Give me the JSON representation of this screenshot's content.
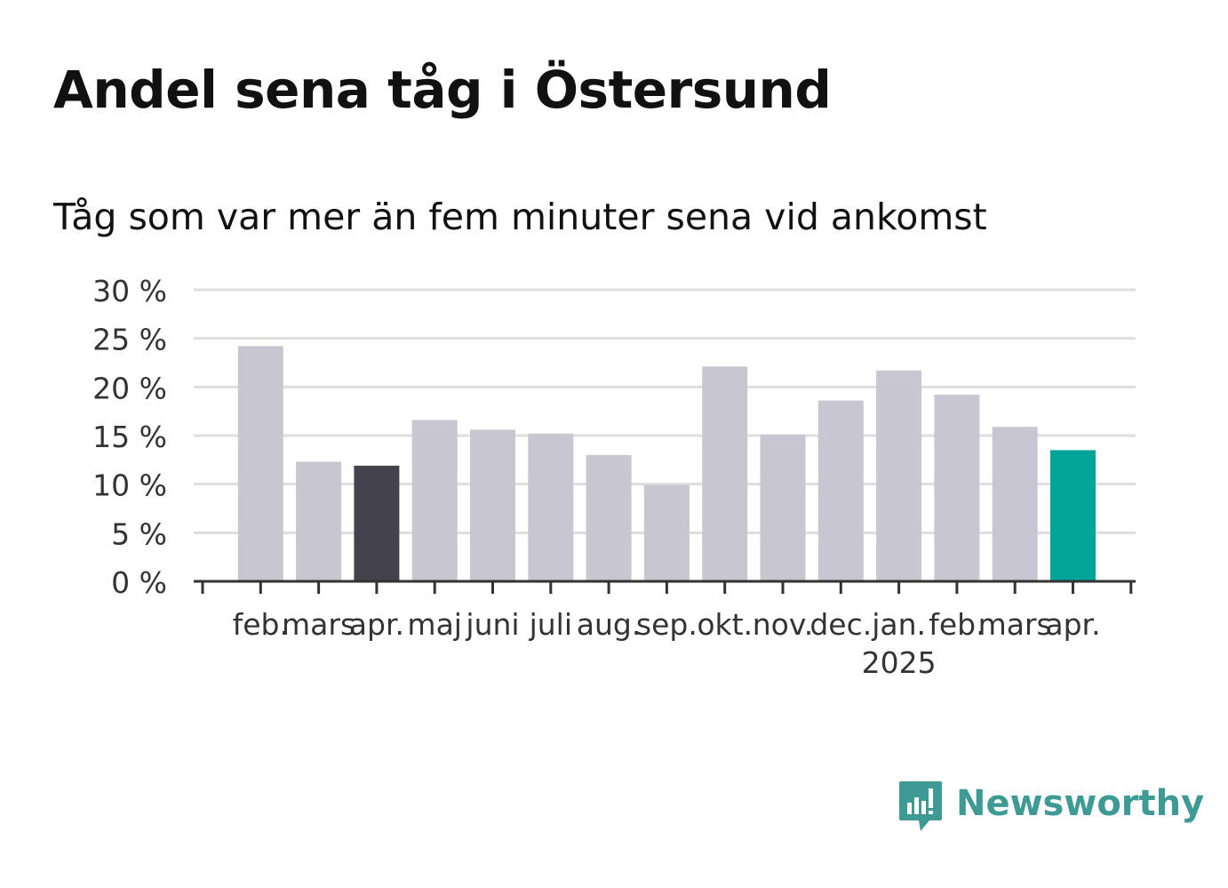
{
  "title": "Andel sena tåg i Östersund",
  "subtitle": "Tåg som var mer än fem minuter sena vid ankomst",
  "brand": {
    "name": "Newsworthy",
    "icon": "newsworthy-logo-icon",
    "color": "#3d9a95"
  },
  "chart_data": {
    "type": "bar",
    "categories": [
      "feb.",
      "mars",
      "apr.",
      "maj",
      "juni",
      "juli",
      "aug.",
      "sep.",
      "okt.",
      "nov.",
      "dec.",
      "jan.",
      "feb.",
      "mars",
      "apr."
    ],
    "year_labels": [
      {
        "category_index": 11,
        "label": "2025"
      }
    ],
    "values": [
      24.2,
      12.3,
      11.9,
      16.6,
      15.6,
      15.2,
      13.0,
      9.9,
      22.1,
      15.1,
      18.6,
      21.7,
      19.2,
      15.9,
      13.5
    ],
    "colors": [
      "#c8c6d0",
      "#c8c6d0",
      "#43424d",
      "#c8c6d0",
      "#c8c6d0",
      "#c8c6d0",
      "#c8c6d0",
      "#c8c6d0",
      "#c8c6d0",
      "#c8c6d0",
      "#c8c6d0",
      "#c8c6d0",
      "#c8c6d0",
      "#c8c6d0",
      "#00a598"
    ],
    "y_ticks": [
      "0 %",
      "5 %",
      "10 %",
      "15 %",
      "20 %",
      "25 %",
      "30 %"
    ],
    "y_tick_values": [
      0,
      5,
      10,
      15,
      20,
      25,
      30
    ],
    "ylim": [
      0,
      30
    ],
    "xlabel": "",
    "ylabel": "",
    "grid": true
  }
}
